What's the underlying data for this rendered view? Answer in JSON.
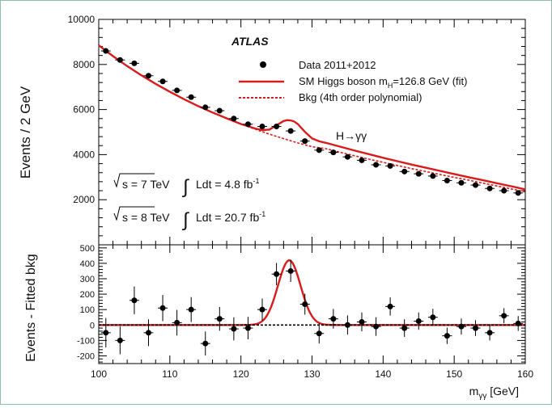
{
  "chart_data": {
    "type": "scatter",
    "experiment": "ATLAS",
    "process_label": "H→γγ",
    "x_axis": {
      "label": "m_γγ [GeV]",
      "label_main": "m",
      "label_sub": "γγ",
      "label_unit": " [GeV]",
      "range": [
        100,
        160
      ],
      "ticks": [
        100,
        110,
        120,
        130,
        140,
        150,
        160
      ]
    },
    "panels": [
      {
        "name": "main",
        "ylabel": "Events / 2 GeV",
        "ylim": [
          0,
          10000
        ],
        "yticks": [
          2000,
          4000,
          6000,
          8000,
          10000
        ],
        "legend": {
          "placement": "top-right",
          "entries": [
            {
              "label": "Data 2011+2012",
              "style": "marker",
              "color": "#000000"
            },
            {
              "label": "SM Higgs boson m_H=126.8 GeV (fit)",
              "label_pre": "SM Higgs boson m",
              "label_sub": "H",
              "label_post": "=126.8 GeV (fit)",
              "style": "solid",
              "color": "#d81b1b"
            },
            {
              "label": "Bkg (4th order polynomial)",
              "style": "dashed",
              "color": "#d81b1b"
            }
          ]
        },
        "annotations": [
          {
            "sqrt_s": "s = 7 TeV",
            "lumi_text": "Ldt = 4.8 fb",
            "lumi_exp": "-1"
          },
          {
            "sqrt_s": "s = 8 TeV",
            "lumi_text": "Ldt = 20.7 fb",
            "lumi_exp": "-1"
          }
        ],
        "series": [
          {
            "name": "Data 2011+2012",
            "x": [
              101,
              103,
              105,
              107,
              109,
              111,
              113,
              115,
              117,
              119,
              121,
              123,
              125,
              127,
              129,
              131,
              133,
              135,
              137,
              139,
              141,
              143,
              145,
              147,
              149,
              151,
              153,
              155,
              157,
              159
            ],
            "y": [
              8600,
              8200,
              8050,
              7500,
              7250,
              6850,
              6550,
              6100,
              5950,
              5600,
              5350,
              5250,
              5250,
              5050,
              4600,
              4200,
              4100,
              3900,
              3750,
              3550,
              3500,
              3250,
              3150,
              3050,
              2850,
              2750,
              2650,
              2500,
              2400,
              2300
            ],
            "err": [
              95,
              90,
              90,
              87,
              85,
              83,
              81,
              78,
              77,
              75,
              73,
              72,
              72,
              71,
              68,
              65,
              64,
              62,
              61,
              60,
              59,
              57,
              56,
              55,
              53,
              52,
              51,
              50,
              49,
              48
            ]
          },
          {
            "name": "SM Higgs boson m_H=126.8 GeV (fit)",
            "x": [
              100,
              102,
              104,
              106,
              108,
              110,
              112,
              114,
              116,
              118,
              120,
              122,
              123,
              124,
              125,
              126,
              126.5,
              127,
              127.5,
              128,
              129,
              130,
              131,
              132,
              134,
              136,
              138,
              140,
              142,
              144,
              146,
              148,
              150,
              152,
              154,
              156,
              158,
              160
            ],
            "y": [
              8850,
              8370,
              7930,
              7520,
              7140,
              6790,
              6460,
              6150,
              5870,
              5610,
              5360,
              5160,
              5090,
              5110,
              5300,
              5490,
              5530,
              5520,
              5470,
              5360,
              5010,
              4720,
              4590,
              4520,
              4350,
              4180,
              4020,
              3860,
              3710,
              3560,
              3420,
              3280,
              3140,
              3000,
              2870,
              2730,
              2600,
              2460
            ]
          },
          {
            "name": "Bkg (4th order polynomial)",
            "x": [
              100,
              102,
              104,
              106,
              108,
              110,
              112,
              114,
              116,
              118,
              120,
              122,
              124,
              126,
              128,
              130,
              132,
              134,
              136,
              138,
              140,
              142,
              144,
              146,
              148,
              150,
              152,
              154,
              156,
              158,
              160
            ],
            "y": [
              8850,
              8370,
              7930,
              7520,
              7140,
              6790,
              6460,
              6150,
              5870,
              5610,
              5360,
              5130,
              4910,
              4710,
              4520,
              4350,
              4260,
              4100,
              3950,
              3800,
              3660,
              3520,
              3380,
              3250,
              3120,
              2990,
              2870,
              2740,
              2610,
              2480,
              2350
            ]
          }
        ]
      },
      {
        "name": "residual",
        "ylabel": "Events - Fitted bkg",
        "ylim": [
          -250,
          520
        ],
        "yticks": [
          -200,
          -100,
          0,
          100,
          200,
          300,
          400,
          500
        ],
        "series": [
          {
            "name": "Data 2011+2012",
            "x": [
              101,
              103,
              105,
              107,
              109,
              111,
              113,
              115,
              117,
              119,
              121,
              123,
              125,
              127,
              129,
              131,
              133,
              135,
              137,
              139,
              141,
              143,
              145,
              147,
              149,
              151,
              153,
              155,
              157,
              159
            ],
            "y": [
              -50,
              -100,
              160,
              -50,
              110,
              15,
              100,
              -120,
              40,
              -25,
              -20,
              100,
              330,
              350,
              135,
              -55,
              40,
              0,
              20,
              -10,
              120,
              -20,
              25,
              50,
              -70,
              -10,
              -20,
              -50,
              60,
              10
            ],
            "err": [
              95,
              90,
              90,
              87,
              85,
              83,
              81,
              78,
              77,
              75,
              73,
              72,
              72,
              71,
              68,
              65,
              64,
              62,
              61,
              60,
              59,
              57,
              56,
              55,
              53,
              52,
              51,
              50,
              49,
              48
            ]
          },
          {
            "name": "SM Higgs boson m_H=126.8 GeV (fit)",
            "function": "gaussian",
            "mean": 126.8,
            "sigma": 1.6,
            "amplitude": 420
          },
          {
            "name": "Bkg (4th order polynomial)",
            "y_const": 0
          }
        ]
      }
    ]
  }
}
